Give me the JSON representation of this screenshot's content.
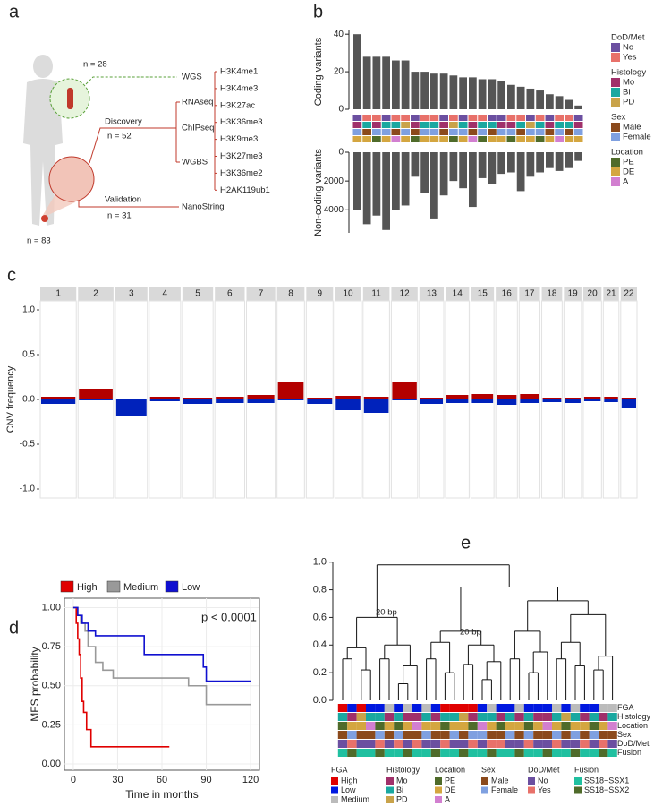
{
  "panel_labels": [
    "a",
    "b",
    "c",
    "d",
    "e"
  ],
  "diagram": {
    "n_wgs": "n = 28",
    "assays": [
      "WGS",
      "RNAseq",
      "ChIPseq",
      "WGBS"
    ],
    "discovery": "Discovery",
    "n_discovery": "n = 52",
    "marks": [
      "H3K4me1",
      "H3K4me3",
      "H3K27ac",
      "H3K36me3",
      "H3K9me3",
      "H3K27me3",
      "H3K36me2",
      "H2AK119ub1"
    ],
    "validation": "Validation",
    "validation_assay": "NanoString",
    "n_validation": "n = 31",
    "n_total": "n = 83"
  },
  "chart_data": [
    {
      "type": "bar",
      "ylabel": "Coding variants",
      "color": "#555555",
      "values": [
        40,
        28,
        28,
        28,
        26,
        26,
        20,
        20,
        19,
        19,
        18,
        17,
        17,
        16,
        16,
        15,
        13,
        12,
        11,
        10,
        8,
        7,
        5,
        2
      ],
      "ylim": [
        0,
        42
      ],
      "yticks": [
        0,
        20,
        40
      ]
    },
    {
      "type": "bar",
      "ylabel": "Non-coding variants",
      "color": "#555555",
      "inverted": true,
      "values": [
        4000,
        5000,
        4400,
        5400,
        4000,
        3700,
        1700,
        2800,
        4600,
        3000,
        2000,
        2500,
        3800,
        1800,
        2200,
        1500,
        1400,
        2700,
        1700,
        1400,
        1100,
        1300,
        1100,
        600
      ],
      "ylim": [
        0,
        5600
      ],
      "yticks": [
        0,
        2000,
        4000
      ],
      "annotation": [
        {
          "title": "DoD/Met",
          "items": [
            {
              "name": "No",
              "color": "#6b4fa0"
            },
            {
              "name": "Yes",
              "color": "#e8716a"
            }
          ],
          "values": [
            "No",
            "Yes",
            "Yes",
            "No",
            "Yes",
            "Yes",
            "No",
            "Yes",
            "Yes",
            "No",
            "Yes",
            "No",
            "Yes",
            "Yes",
            "No",
            "No",
            "Yes",
            "Yes",
            "No",
            "Yes",
            "No",
            "Yes",
            "Yes",
            "No"
          ]
        },
        {
          "title": "Histology",
          "items": [
            {
              "name": "Mo",
              "color": "#a0306a"
            },
            {
              "name": "Bi",
              "color": "#1aa8a0"
            },
            {
              "name": "PD",
              "color": "#c9a34a"
            }
          ],
          "values": [
            "Mo",
            "Bi",
            "Mo",
            "Bi",
            "Bi",
            "PD",
            "Mo",
            "Bi",
            "Bi",
            "Mo",
            "PD",
            "Bi",
            "Mo",
            "Bi",
            "Bi",
            "Mo",
            "Mo",
            "Bi",
            "PD",
            "Bi",
            "Mo",
            "Bi",
            "Bi",
            "Mo"
          ]
        },
        {
          "title": "Sex",
          "items": [
            {
              "name": "Male",
              "color": "#8b4a1c"
            },
            {
              "name": "Female",
              "color": "#7fa0e0"
            }
          ],
          "values": [
            "Female",
            "Male",
            "Female",
            "Female",
            "Male",
            "Female",
            "Male",
            "Female",
            "Female",
            "Male",
            "Female",
            "Female",
            "Male",
            "Female",
            "Male",
            "Female",
            "Female",
            "Male",
            "Female",
            "Female",
            "Male",
            "Female",
            "Male",
            "Female"
          ]
        },
        {
          "title": "Location",
          "items": [
            {
              "name": "PE",
              "color": "#4f6b2a"
            },
            {
              "name": "DE",
              "color": "#d4a640"
            },
            {
              "name": "A",
              "color": "#d27fd0"
            }
          ],
          "values": [
            "DE",
            "DE",
            "PE",
            "DE",
            "A",
            "DE",
            "PE",
            "DE",
            "DE",
            "DE",
            "PE",
            "DE",
            "A",
            "PE",
            "DE",
            "DE",
            "PE",
            "DE",
            "DE",
            "PE",
            "DE",
            "A",
            "DE",
            "DE"
          ]
        }
      ]
    },
    {
      "type": "bar",
      "ylabel": "CNV frequency",
      "categories": [
        "1",
        "2",
        "3",
        "4",
        "5",
        "6",
        "7",
        "8",
        "9",
        "10",
        "11",
        "12",
        "13",
        "14",
        "15",
        "16",
        "17",
        "18",
        "19",
        "20",
        "21",
        "22"
      ],
      "series": [
        {
          "color": "#b30000",
          "values": [
            0.03,
            0.12,
            0.01,
            0.03,
            0.02,
            0.03,
            0.05,
            0.2,
            0.02,
            0.04,
            0.03,
            0.2,
            0.02,
            0.05,
            0.06,
            0.05,
            0.06,
            0.02,
            0.02,
            0.03,
            0.03,
            0.02
          ]
        },
        {
          "color": "#0022bb",
          "values": [
            -0.05,
            -0.01,
            -0.18,
            -0.02,
            -0.05,
            -0.04,
            -0.04,
            -0.01,
            -0.05,
            -0.12,
            -0.15,
            -0.01,
            -0.05,
            -0.04,
            -0.04,
            -0.06,
            -0.04,
            -0.03,
            -0.04,
            -0.02,
            -0.03,
            -0.1
          ]
        }
      ],
      "ylim": [
        -1.1,
        1.1
      ],
      "yticks": [
        {
          "value": -1,
          "label": "-1.0"
        },
        -0.5,
        {
          "value": 0,
          "label": "0.0"
        },
        0.5,
        {
          "value": 1,
          "label": "1.0"
        }
      ]
    },
    {
      "type": "step",
      "xlabel": "Time in months",
      "ylabel": "MFS probability",
      "annotation": "p < 0.0001",
      "grid": true,
      "series": [
        {
          "name": "High",
          "color": "#e00000",
          "x": [
            0,
            2,
            3,
            4,
            5,
            6,
            7,
            9,
            12,
            15,
            65
          ],
          "values": [
            1,
            0.9,
            0.8,
            0.7,
            0.55,
            0.4,
            0.33,
            0.22,
            0.11,
            0.11,
            0.11
          ]
        },
        {
          "name": "Medium",
          "color": "#999999",
          "x": [
            0,
            3,
            5,
            8,
            10,
            15,
            20,
            27,
            60,
            78,
            90,
            120
          ],
          "values": [
            1,
            0.95,
            0.9,
            0.85,
            0.75,
            0.65,
            0.6,
            0.55,
            0.55,
            0.5,
            0.38,
            0.38
          ]
        },
        {
          "name": "Low",
          "color": "#1010d0",
          "x": [
            0,
            3,
            6,
            10,
            15,
            20,
            48,
            60,
            88,
            90,
            120
          ],
          "values": [
            1,
            0.95,
            0.9,
            0.85,
            0.82,
            0.82,
            0.7,
            0.7,
            0.62,
            0.53,
            0.53
          ]
        }
      ],
      "xlim": [
        -6,
        126
      ],
      "xticks": [
        0,
        30,
        60,
        90,
        120
      ],
      "ylim": [
        -0.04,
        1.06
      ],
      "yticks": [
        {
          "value": 0,
          "label": "0.00"
        },
        0.25,
        {
          "value": 0.5,
          "label": "0.50"
        },
        0.75,
        {
          "value": 1,
          "label": "1.00"
        }
      ]
    },
    {
      "type": "dendrogram",
      "annotations": [
        "20 bp",
        "20 bp"
      ],
      "tree": [
        0.98,
        [
          0.6,
          [
            0.38,
            [
              0.3,
              0,
              0
            ],
            [
              0.22,
              0,
              0
            ]
          ],
          [
            0.4,
            [
              0.3,
              0,
              0
            ],
            [
              0.25,
              [
                0.12,
                0,
                0
              ],
              0
            ]
          ]
        ],
        [
          0.82,
          [
            0.5,
            [
              0.42,
              [
                0.3,
                0,
                0
              ],
              [
                0.2,
                0,
                0
              ]
            ],
            [
              0.4,
              [
                0.26,
                0,
                0
              ],
              [
                0.28,
                [
                  0.15,
                  0,
                  0
                ],
                0
              ]
            ]
          ],
          [
            0.72,
            [
              0.5,
              [
                0.3,
                0,
                0
              ],
              [
                0.35,
                [
                  0.2,
                  0,
                  0
                ],
                0
              ]
            ],
            [
              0.62,
              [
                0.42,
                [
                  0.3,
                  0,
                  0
                ],
                [
                  0.25,
                  0,
                  0
                ]
              ],
              [
                0.32,
                [
                  0.22,
                  0,
                  0
                ],
                0
              ]
            ]
          ]
        ]
      ],
      "ylim": [
        0,
        1.05
      ],
      "yticks": [
        {
          "value": 0,
          "label": "0.0"
        },
        0.2,
        0.4,
        0.6,
        0.8,
        {
          "value": 1,
          "label": "1.0"
        }
      ],
      "annotation": [
        {
          "title": "FGA",
          "items": [
            {
              "name": "High",
              "color": "#e00000"
            },
            {
              "name": "Low",
              "color": "#0018e0"
            },
            {
              "name": "Medium",
              "color": "#bbbbbb"
            }
          ],
          "values": [
            "High",
            "Low",
            "High",
            "Low",
            "Low",
            "Medium",
            "Low",
            "Medium",
            "Low",
            "Medium",
            "Low",
            "High",
            "High",
            "High",
            "High",
            "Low",
            "Medium",
            "Low",
            "Low",
            "Medium",
            "Low",
            "Low",
            "Low",
            "Medium",
            "Low",
            "Medium",
            "Low",
            "Low",
            "Medium",
            "Medium"
          ]
        },
        {
          "title": "Histology",
          "items": [
            {
              "name": "Mo",
              "color": "#a0306a"
            },
            {
              "name": "Bi",
              "color": "#1aa8a0"
            },
            {
              "name": "PD",
              "color": "#c9a34a"
            }
          ],
          "values": [
            "Bi",
            "Mo",
            "PD",
            "Bi",
            "Bi",
            "Mo",
            "Bi",
            "Mo",
            "Mo",
            "Bi",
            "Mo",
            "Bi",
            "Bi",
            "PD",
            "Mo",
            "Bi",
            "Bi",
            "Mo",
            "Bi",
            "Mo",
            "Bi",
            "Mo",
            "Mo",
            "Bi",
            "PD",
            "Bi",
            "Mo",
            "Bi",
            "Mo",
            "Bi"
          ]
        },
        {
          "title": "Location",
          "items": [
            {
              "name": "PE",
              "color": "#4f6b2a"
            },
            {
              "name": "DE",
              "color": "#d4a640"
            },
            {
              "name": "A",
              "color": "#d27fd0"
            }
          ],
          "values": [
            "PE",
            "DE",
            "DE",
            "A",
            "PE",
            "DE",
            "PE",
            "DE",
            "A",
            "DE",
            "DE",
            "PE",
            "DE",
            "DE",
            "PE",
            "A",
            "DE",
            "PE",
            "DE",
            "DE",
            "PE",
            "DE",
            "A",
            "DE",
            "PE",
            "DE",
            "DE",
            "PE",
            "DE",
            "A"
          ]
        },
        {
          "title": "Sex",
          "items": [
            {
              "name": "Male",
              "color": "#8b4a1c"
            },
            {
              "name": "Female",
              "color": "#7fa0e0"
            }
          ],
          "values": [
            "Male",
            "Female",
            "Male",
            "Male",
            "Female",
            "Male",
            "Female",
            "Male",
            "Male",
            "Female",
            "Male",
            "Male",
            "Female",
            "Male",
            "Female",
            "Female",
            "Male",
            "Male",
            "Female",
            "Male",
            "Female",
            "Male",
            "Male",
            "Female",
            "Male",
            "Female",
            "Male",
            "Female",
            "Male",
            "Male"
          ]
        },
        {
          "title": "DoD/Met",
          "items": [
            {
              "name": "No",
              "color": "#6b4fa0"
            },
            {
              "name": "Yes",
              "color": "#e8716a"
            }
          ],
          "values": [
            "No",
            "Yes",
            "No",
            "No",
            "Yes",
            "No",
            "Yes",
            "No",
            "Yes",
            "No",
            "No",
            "Yes",
            "No",
            "No",
            "Yes",
            "No",
            "Yes",
            "Yes",
            "No",
            "No",
            "Yes",
            "No",
            "No",
            "Yes",
            "No",
            "No",
            "Yes",
            "No",
            "Yes",
            "No"
          ]
        },
        {
          "title": "Fusion",
          "items": [
            {
              "name": "SS18−SSX1",
              "color": "#20c0a0"
            },
            {
              "name": "SS18−SSX2",
              "color": "#4f6b2a"
            }
          ],
          "values": [
            "SS18−SSX1",
            "SS18−SSX2",
            "SS18−SSX1",
            "SS18−SSX1",
            "SS18−SSX2",
            "SS18−SSX1",
            "SS18−SSX1",
            "SS18−SSX2",
            "SS18−SSX1",
            "SS18−SSX1",
            "SS18−SSX2",
            "SS18−SSX1",
            "SS18−SSX1",
            "SS18−SSX2",
            "SS18−SSX1",
            "SS18−SSX1",
            "SS18−SSX2",
            "SS18−SSX1",
            "SS18−SSX1",
            "SS18−SSX2",
            "SS18−SSX1",
            "SS18−SSX1",
            "SS18−SSX2",
            "SS18−SSX1",
            "SS18−SSX1",
            "SS18−SSX2",
            "SS18−SSX1",
            "SS18−SSX1",
            "SS18−SSX2",
            "SS18−SSX1"
          ]
        }
      ]
    }
  ]
}
